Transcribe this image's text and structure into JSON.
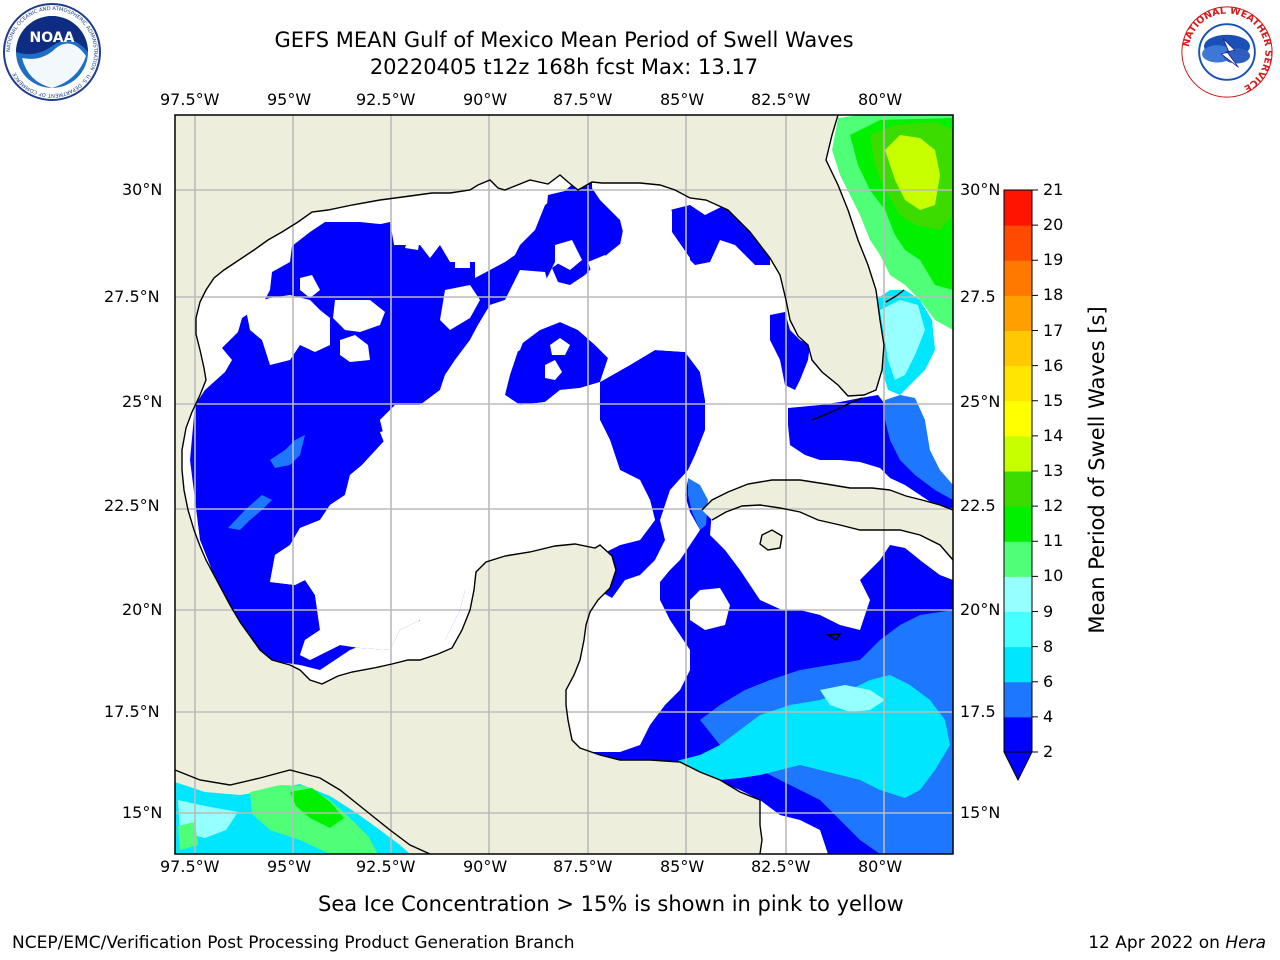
{
  "title": {
    "line1": "GEFS MEAN Gulf of Mexico Mean Period of Swell Waves",
    "line2": "20220405 t12z 168h fcst   Max: 13.17"
  },
  "map": {
    "lon_labels": [
      "97.5°W",
      "95°W",
      "92.5°W",
      "90°W",
      "87.5°W",
      "85°W",
      "82.5°W",
      "80°W"
    ],
    "lat_labels_left": [
      "30°N",
      "27.5°N",
      "25°N",
      "22.5°N",
      "20°N",
      "17.5°N",
      "15°N"
    ],
    "lat_labels_right": [
      "30°N",
      "27.5",
      "25°N",
      "22.5",
      "20°N",
      "17.5",
      "15°N"
    ],
    "land_color": "#eeeedd",
    "ocean_color": "#ffffff",
    "gridline_color": "#bbbbbb"
  },
  "colorbar": {
    "label": "Mean Period of Swell Waves [s]",
    "ticks": [
      "2",
      "4",
      "6",
      "8",
      "9",
      "10",
      "11",
      "12",
      "13",
      "14",
      "15",
      "16",
      "17",
      "18",
      "19",
      "20",
      "21"
    ],
    "colors": [
      "#0000ff",
      "#1e78ff",
      "#00e6ff",
      "#46ffff",
      "#96ffff",
      "#50ff78",
      "#00f000",
      "#3cdc00",
      "#c8ff00",
      "#ffff00",
      "#ffe600",
      "#ffc800",
      "#ffa000",
      "#ff7800",
      "#ff4b00",
      "#ff1400"
    ],
    "under_color": "#0000ff"
  },
  "caption": "Sea Ice Concentration > 15% is shown in pink to yellow",
  "footer": {
    "left": "NCEP/EMC/Verification Post Processing Product Generation Branch",
    "date": "12 Apr 2022 on ",
    "host": "Hera"
  },
  "logos": {
    "noaa_text": "NOAA",
    "noaa_ring_text": "NATIONAL OCEANIC AND ATMOSPHERIC ADMINISTRATION · U.S. DEPARTMENT OF COMMERCE",
    "nws_ring_text": "NATIONAL WEATHER SERVICE"
  }
}
